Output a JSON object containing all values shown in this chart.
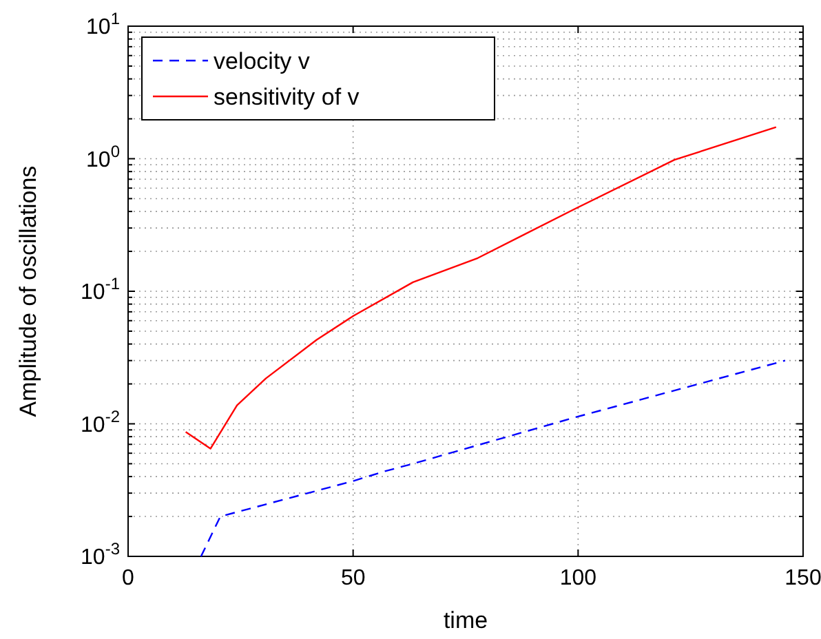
{
  "chart_data": {
    "type": "line",
    "xlabel": "time",
    "ylabel": "Amplitude of oscillations",
    "xlim": [
      0,
      150
    ],
    "xticks": [
      0,
      50,
      100,
      150
    ],
    "ylim": [
      0.001,
      10
    ],
    "yticks": [
      {
        "value": 0.001,
        "label": "10$^{-3}$"
      },
      {
        "value": 0.01,
        "label": "10$^{-2}$"
      },
      {
        "value": 0.1,
        "label": "10$^{-1}$"
      },
      {
        "value": 1,
        "label": "10$^{0}$"
      },
      {
        "value": 10,
        "label": "10$^{1}$"
      }
    ],
    "log": "y",
    "grid": true,
    "legend": "top left",
    "marker": "none",
    "series": [
      {
        "name": "velocity v",
        "color": "#0000ff",
        "line_style": "dashed",
        "x": [
          16.2,
          20.5,
          50,
          57.2,
          63.3,
          99.4,
          146
        ],
        "values": [
          0.001,
          0.002,
          0.0037,
          0.0044,
          0.005,
          0.0112,
          0.03
        ]
      },
      {
        "name": "sensitivity of v",
        "color": "#ff0000",
        "line_style": "solid",
        "x": [
          12.8,
          18.3,
          24.2,
          30.6,
          41.9,
          50,
          63.3,
          77.7,
          99.4,
          121.4,
          144
        ],
        "values": [
          0.0087,
          0.0065,
          0.0138,
          0.022,
          0.043,
          0.065,
          0.117,
          0.178,
          0.42,
          0.98,
          1.73
        ]
      }
    ]
  }
}
